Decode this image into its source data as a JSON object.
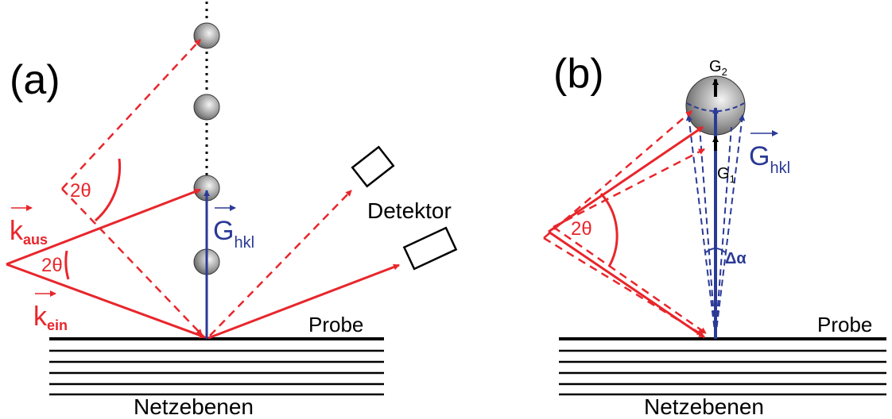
{
  "panel_a": {
    "label": "(a)",
    "angle_upper": "2θ",
    "angle_lower": "2θ",
    "k_out": {
      "symbol": "k",
      "sub": "aus"
    },
    "k_in": {
      "symbol": "k",
      "sub": "ein"
    },
    "g": {
      "symbol": "G",
      "sub": "hkl"
    },
    "detector": "Detektor",
    "sample": "Probe",
    "planes": "Netzebenen"
  },
  "panel_b": {
    "label": "(b)",
    "g2": {
      "symbol": "G",
      "sub": "2"
    },
    "g1": {
      "symbol": "G",
      "sub": "1"
    },
    "g": {
      "symbol": "G",
      "sub": "hkl"
    },
    "angle": "2θ",
    "delta": "Δα",
    "sample": "Probe",
    "planes": "Netzebenen"
  }
}
